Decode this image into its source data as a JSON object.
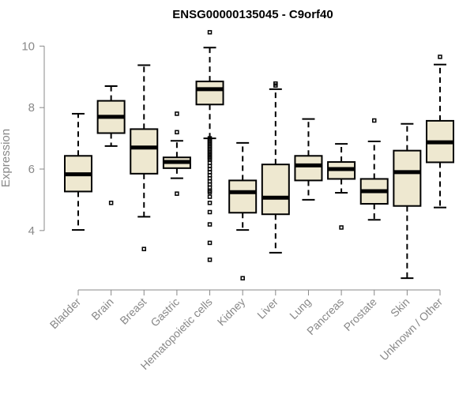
{
  "chart_data": {
    "type": "boxplot",
    "title": "ENSG00000135045 - C9orf40",
    "ylabel": "Expression",
    "xlabel": "",
    "ylim": [
      2.3,
      10.6
    ],
    "yticks": [
      4,
      6,
      8,
      10
    ],
    "box_fill": "#EEE8D0",
    "categories": [
      "Bladder",
      "Brain",
      "Breast",
      "Gastric",
      "Hematopoietic cells",
      "Kidney",
      "Liver",
      "Lung",
      "Pancreas",
      "Prostate",
      "Skin",
      "Unknown / Other"
    ],
    "boxes": [
      {
        "q1": 5.27,
        "median": 5.83,
        "q3": 6.43,
        "whisker_low": 4.02,
        "whisker_high": 7.8,
        "outliers": []
      },
      {
        "q1": 7.17,
        "median": 7.7,
        "q3": 8.22,
        "whisker_low": 6.75,
        "whisker_high": 8.7,
        "outliers": [
          4.9
        ]
      },
      {
        "q1": 5.85,
        "median": 6.7,
        "q3": 7.3,
        "whisker_low": 4.45,
        "whisker_high": 9.38,
        "outliers": [
          3.4
        ]
      },
      {
        "q1": 6.03,
        "median": 6.23,
        "q3": 6.38,
        "whisker_low": 5.7,
        "whisker_high": 6.92,
        "outliers": [
          7.2,
          7.8,
          5.2
        ]
      },
      {
        "q1": 8.1,
        "median": 8.6,
        "q3": 8.85,
        "whisker_low": 7.0,
        "whisker_high": 9.95,
        "outliers": [
          10.45,
          7.0,
          6.95,
          6.9,
          6.85,
          6.8,
          6.75,
          6.7,
          6.65,
          6.6,
          6.55,
          6.5,
          6.45,
          6.4,
          6.35,
          6.3,
          6.2,
          6.1,
          6.0,
          5.9,
          5.8,
          5.7,
          5.6,
          5.5,
          5.4,
          5.3,
          5.25,
          5.1,
          4.9,
          4.6,
          4.2,
          3.6,
          3.05
        ]
      },
      {
        "q1": 4.58,
        "median": 5.25,
        "q3": 5.63,
        "whisker_low": 4.02,
        "whisker_high": 6.85,
        "outliers": [
          2.45
        ]
      },
      {
        "q1": 4.53,
        "median": 5.07,
        "q3": 6.15,
        "whisker_low": 3.28,
        "whisker_high": 8.6,
        "outliers": [
          8.72,
          8.78
        ]
      },
      {
        "q1": 5.63,
        "median": 6.12,
        "q3": 6.43,
        "whisker_low": 5.0,
        "whisker_high": 7.63,
        "outliers": []
      },
      {
        "q1": 5.68,
        "median": 6.0,
        "q3": 6.23,
        "whisker_low": 5.23,
        "whisker_high": 6.82,
        "outliers": [
          4.1
        ]
      },
      {
        "q1": 4.87,
        "median": 5.28,
        "q3": 5.68,
        "whisker_low": 4.35,
        "whisker_high": 6.9,
        "outliers": [
          7.58
        ]
      },
      {
        "q1": 4.8,
        "median": 5.9,
        "q3": 6.6,
        "whisker_low": 2.45,
        "whisker_high": 7.47,
        "outliers": []
      },
      {
        "q1": 6.22,
        "median": 6.87,
        "q3": 7.57,
        "whisker_low": 4.75,
        "whisker_high": 9.4,
        "outliers": [
          9.65
        ]
      }
    ]
  }
}
